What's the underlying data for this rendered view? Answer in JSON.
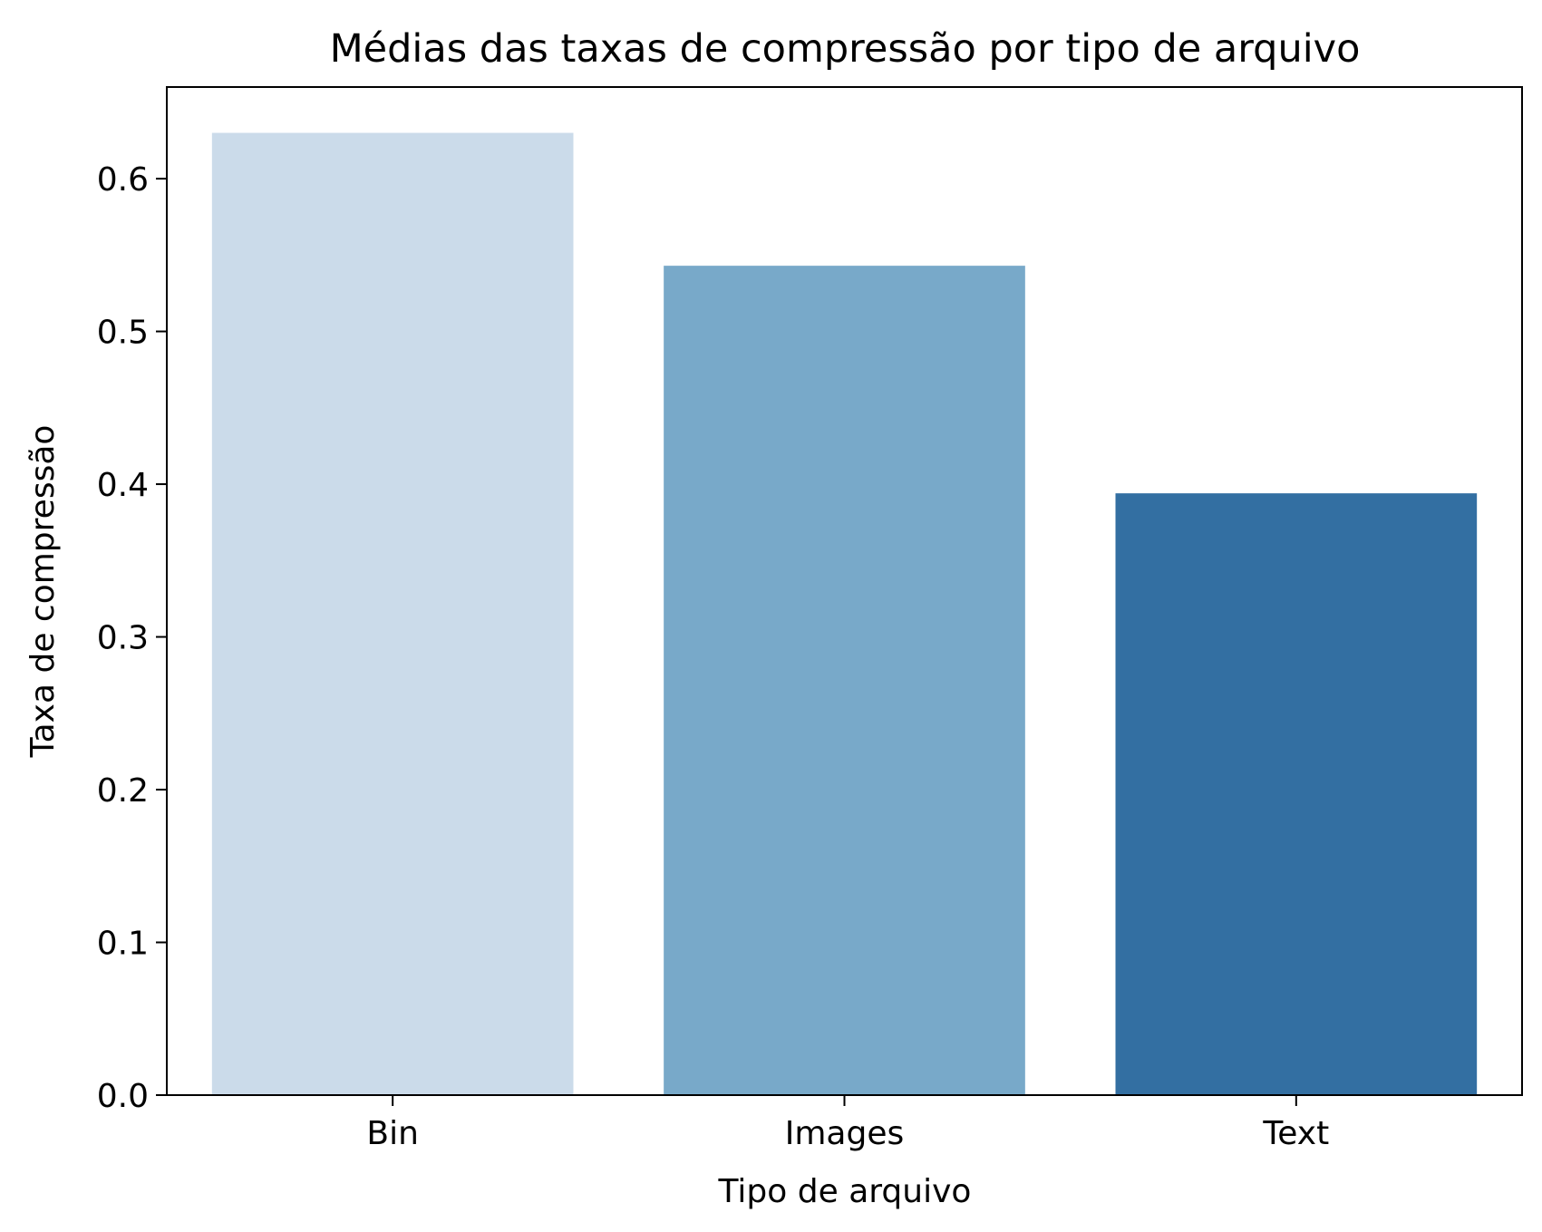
{
  "chart_data": {
    "type": "bar",
    "title": "Médias das taxas de compressão por tipo de arquivo",
    "xlabel": "Tipo de arquivo",
    "ylabel": "Taxa de compressão",
    "categories": [
      "Bin",
      "Images",
      "Text"
    ],
    "values": [
      0.63,
      0.543,
      0.394
    ],
    "colors": [
      "#cbdbea",
      "#78a9c9",
      "#336fa2"
    ],
    "ylim": [
      0,
      0.66
    ],
    "yticks": [
      0.0,
      0.1,
      0.2,
      0.3,
      0.4,
      0.5,
      0.6
    ],
    "ytick_labels": [
      "0.0",
      "0.1",
      "0.2",
      "0.3",
      "0.4",
      "0.5",
      "0.6"
    ],
    "grid": false,
    "legend": "none"
  }
}
